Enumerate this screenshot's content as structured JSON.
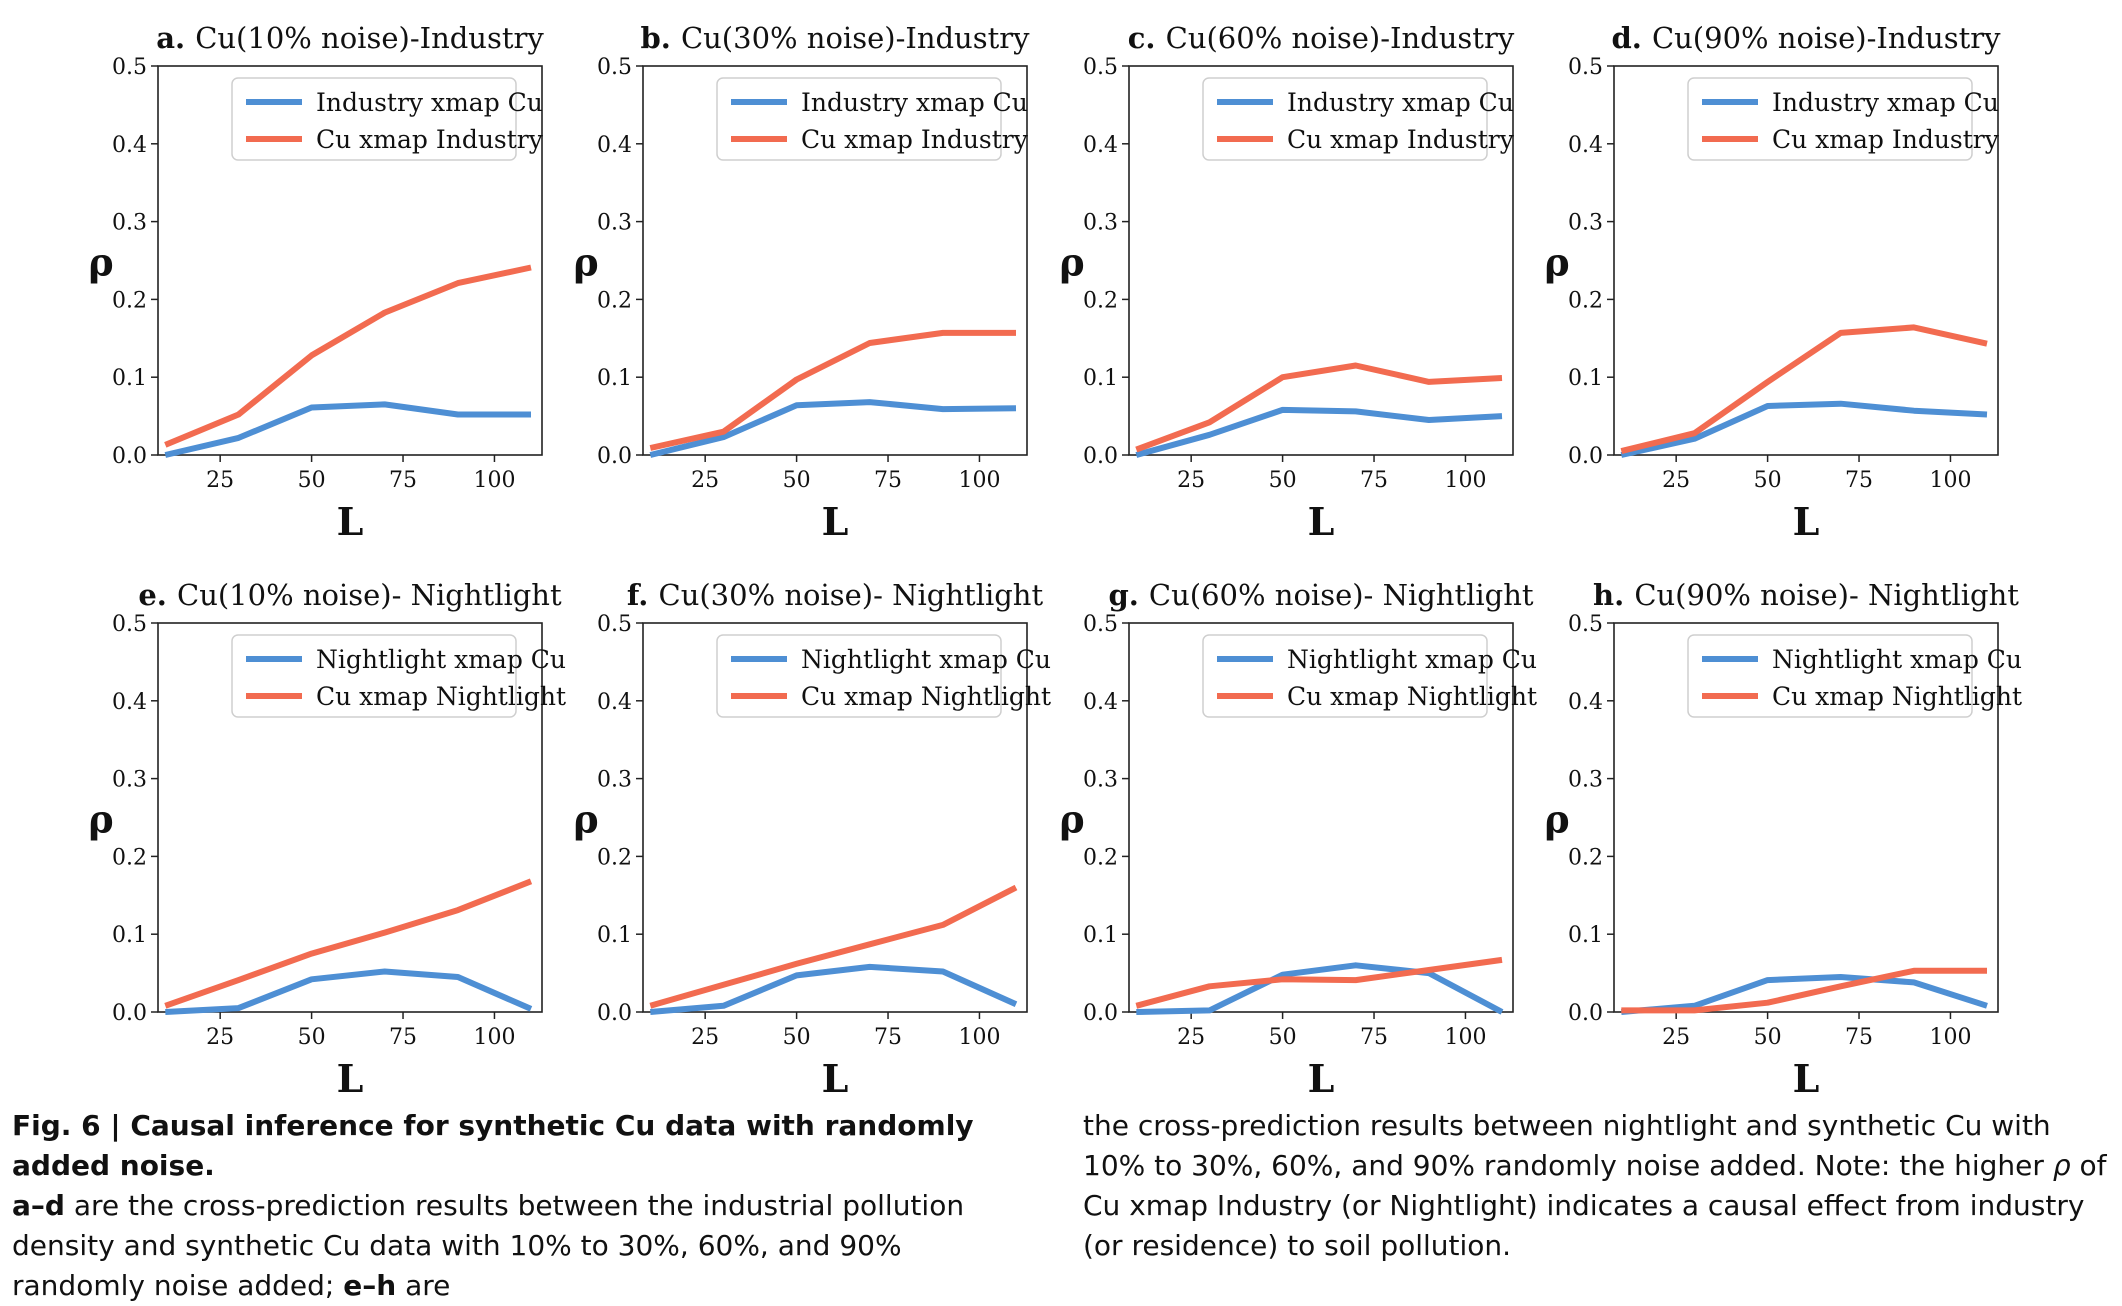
{
  "chart_data": [
    {
      "type": "line",
      "title": "Cu(10% noise)-Industry",
      "panel_letter": "a.",
      "xlabel": "L",
      "ylabel": "ρ",
      "xlim": [
        8,
        113
      ],
      "ylim": [
        0,
        0.5
      ],
      "x_ticks": [
        25,
        50,
        75,
        100
      ],
      "y_ticks": [
        "0.0",
        "0.1",
        "0.2",
        "0.3",
        "0.4",
        "0.5"
      ],
      "legend_position": "upper-center",
      "grid": false,
      "x": [
        10,
        30,
        50,
        70,
        90,
        110
      ],
      "series": [
        {
          "name": "Industry xmap Cu",
          "color": "#4e8fd4",
          "values": [
            0.0,
            0.022,
            0.061,
            0.065,
            0.052,
            0.052
          ]
        },
        {
          "name": "Cu xmap Industry",
          "color": "#f26b50",
          "values": [
            0.013,
            0.052,
            0.128,
            0.183,
            0.221,
            0.241
          ]
        }
      ]
    },
    {
      "type": "line",
      "title": "Cu(30% noise)-Industry",
      "panel_letter": "b.",
      "xlabel": "L",
      "ylabel": "ρ",
      "xlim": [
        8,
        113
      ],
      "ylim": [
        0,
        0.5
      ],
      "x_ticks": [
        25,
        50,
        75,
        100
      ],
      "y_ticks": [
        "0.0",
        "0.1",
        "0.2",
        "0.3",
        "0.4",
        "0.5"
      ],
      "legend_position": "upper-center",
      "grid": false,
      "x": [
        10,
        30,
        50,
        70,
        90,
        110
      ],
      "series": [
        {
          "name": "Industry xmap Cu",
          "color": "#4e8fd4",
          "values": [
            0.0,
            0.023,
            0.064,
            0.068,
            0.059,
            0.06
          ]
        },
        {
          "name": "Cu xmap Industry",
          "color": "#f26b50",
          "values": [
            0.009,
            0.03,
            0.097,
            0.144,
            0.157,
            0.157
          ]
        }
      ]
    },
    {
      "type": "line",
      "title": "Cu(60% noise)-Industry",
      "panel_letter": "c.",
      "xlabel": "L",
      "ylabel": "ρ",
      "xlim": [
        8,
        113
      ],
      "ylim": [
        0,
        0.5
      ],
      "x_ticks": [
        25,
        50,
        75,
        100
      ],
      "y_ticks": [
        "0.0",
        "0.1",
        "0.2",
        "0.3",
        "0.4",
        "0.5"
      ],
      "legend_position": "upper-center",
      "grid": false,
      "x": [
        10,
        30,
        50,
        70,
        90,
        110
      ],
      "series": [
        {
          "name": "Industry xmap Cu",
          "color": "#4e8fd4",
          "values": [
            0.0,
            0.026,
            0.058,
            0.056,
            0.045,
            0.05
          ]
        },
        {
          "name": "Cu xmap Industry",
          "color": "#f26b50",
          "values": [
            0.007,
            0.042,
            0.1,
            0.115,
            0.094,
            0.099
          ]
        }
      ]
    },
    {
      "type": "line",
      "title": "Cu(90% noise)-Industry",
      "panel_letter": "d.",
      "xlabel": "L",
      "ylabel": "ρ",
      "xlim": [
        8,
        113
      ],
      "ylim": [
        0,
        0.5
      ],
      "x_ticks": [
        25,
        50,
        75,
        100
      ],
      "y_ticks": [
        "0.0",
        "0.1",
        "0.2",
        "0.3",
        "0.4",
        "0.5"
      ],
      "legend_position": "upper-center",
      "grid": false,
      "x": [
        10,
        30,
        50,
        70,
        90,
        110
      ],
      "series": [
        {
          "name": "Industry xmap Cu",
          "color": "#4e8fd4",
          "values": [
            0.0,
            0.021,
            0.063,
            0.066,
            0.057,
            0.052
          ]
        },
        {
          "name": "Cu xmap Industry",
          "color": "#f26b50",
          "values": [
            0.005,
            0.028,
            0.094,
            0.157,
            0.164,
            0.143
          ]
        }
      ]
    },
    {
      "type": "line",
      "title": "Cu(10% noise)- Nightlight",
      "panel_letter": "e.",
      "xlabel": "L",
      "ylabel": "ρ",
      "xlim": [
        8,
        113
      ],
      "ylim": [
        0,
        0.5
      ],
      "x_ticks": [
        25,
        50,
        75,
        100
      ],
      "y_ticks": [
        "0.0",
        "0.1",
        "0.2",
        "0.3",
        "0.4",
        "0.5"
      ],
      "legend_position": "upper-center",
      "grid": false,
      "x": [
        10,
        30,
        50,
        70,
        90,
        110
      ],
      "series": [
        {
          "name": "Nightlight  xmap Cu",
          "color": "#4e8fd4",
          "values": [
            0.0,
            0.005,
            0.042,
            0.052,
            0.045,
            0.004
          ]
        },
        {
          "name": "Cu xmap Nightlight",
          "color": "#f26b50",
          "values": [
            0.008,
            0.041,
            0.075,
            0.102,
            0.131,
            0.168
          ]
        }
      ]
    },
    {
      "type": "line",
      "title": "Cu(30% noise)- Nightlight",
      "panel_letter": "f.",
      "xlabel": "L",
      "ylabel": "ρ",
      "xlim": [
        8,
        113
      ],
      "ylim": [
        0,
        0.5
      ],
      "x_ticks": [
        25,
        50,
        75,
        100
      ],
      "y_ticks": [
        "0.0",
        "0.1",
        "0.2",
        "0.3",
        "0.4",
        "0.5"
      ],
      "legend_position": "upper-center",
      "grid": false,
      "x": [
        10,
        30,
        50,
        70,
        90,
        110
      ],
      "series": [
        {
          "name": "Nightlight  xmap Cu",
          "color": "#4e8fd4",
          "values": [
            0.0,
            0.008,
            0.047,
            0.058,
            0.052,
            0.01
          ]
        },
        {
          "name": "Cu xmap Nightlight",
          "color": "#f26b50",
          "values": [
            0.008,
            0.035,
            0.062,
            0.087,
            0.112,
            0.16
          ]
        }
      ]
    },
    {
      "type": "line",
      "title": "Cu(60% noise)- Nightlight",
      "panel_letter": "g.",
      "xlabel": "L",
      "ylabel": "ρ",
      "xlim": [
        8,
        113
      ],
      "ylim": [
        0,
        0.5
      ],
      "x_ticks": [
        25,
        50,
        75,
        100
      ],
      "y_ticks": [
        "0.0",
        "0.1",
        "0.2",
        "0.3",
        "0.4",
        "0.5"
      ],
      "legend_position": "upper-center",
      "grid": false,
      "x": [
        10,
        30,
        50,
        70,
        90,
        110
      ],
      "series": [
        {
          "name": "Nightlight  xmap Cu",
          "color": "#4e8fd4",
          "values": [
            0.0,
            0.002,
            0.048,
            0.06,
            0.05,
            0.0
          ]
        },
        {
          "name": "Cu xmap Nightlight",
          "color": "#f26b50",
          "values": [
            0.008,
            0.033,
            0.042,
            0.041,
            0.054,
            0.067
          ]
        }
      ]
    },
    {
      "type": "line",
      "title": "Cu(90% noise)- Nightlight",
      "panel_letter": "h.",
      "xlabel": "L",
      "ylabel": "ρ",
      "xlim": [
        8,
        113
      ],
      "ylim": [
        0,
        0.5
      ],
      "x_ticks": [
        25,
        50,
        75,
        100
      ],
      "y_ticks": [
        "0.0",
        "0.1",
        "0.2",
        "0.3",
        "0.4",
        "0.5"
      ],
      "legend_position": "upper-center",
      "grid": false,
      "x": [
        10,
        30,
        50,
        70,
        90,
        110
      ],
      "series": [
        {
          "name": "Nightlight  xmap Cu",
          "color": "#4e8fd4",
          "values": [
            0.0,
            0.008,
            0.041,
            0.045,
            0.038,
            0.008
          ]
        },
        {
          "name": "Cu xmap Nightlight",
          "color": "#f26b50",
          "values": [
            0.002,
            0.002,
            0.012,
            0.033,
            0.053,
            0.053
          ]
        }
      ]
    }
  ],
  "caption": {
    "label": "Fig. 6 | Causal inference for synthetic Cu data with randomly added noise.",
    "range1": "a–d",
    "text1": " are the cross-prediction results between the industrial pollution density and synthetic Cu data with 10% to 30%, 60%, and 90% randomly noise added; ",
    "range2": "e–h",
    "text2": " are",
    "text3": "the cross-prediction results between nightlight and synthetic Cu with 10% to 30%, 60%, and 90% randomly noise added. Note: the higher ",
    "rho": "ρ",
    "text4": " of Cu xmap Industry (or Nightlight) indicates a causal effect from industry (or residence) to soil pollution."
  }
}
